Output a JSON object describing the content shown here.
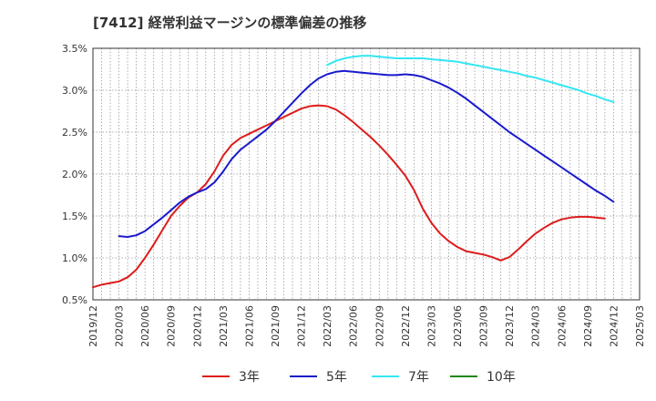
{
  "chart_data": {
    "type": "line",
    "title": "[7412]  経常利益マージンの標準偏差の推移",
    "xlabel": "",
    "ylabel": "",
    "ylim": [
      0.5,
      3.5
    ],
    "y_ticks": [
      "0.5%",
      "1.0%",
      "1.5%",
      "2.0%",
      "2.5%",
      "3.0%",
      "3.5%"
    ],
    "x_ticks": [
      "2019/12",
      "2020/03",
      "2020/06",
      "2020/09",
      "2020/12",
      "2021/03",
      "2021/06",
      "2021/09",
      "2021/12",
      "2022/03",
      "2022/06",
      "2022/09",
      "2022/12",
      "2023/03",
      "2023/06",
      "2023/09",
      "2023/12",
      "2024/03",
      "2024/06",
      "2024/09",
      "2024/12",
      "2025/03"
    ],
    "grid": true,
    "legend_position": "bottom",
    "series": [
      {
        "name": "3年",
        "color": "#dd1c1c",
        "points": [
          [
            "2019/12",
            0.65
          ],
          [
            "2020/01",
            0.68
          ],
          [
            "2020/02",
            0.7
          ],
          [
            "2020/03",
            0.72
          ],
          [
            "2020/04",
            0.77
          ],
          [
            "2020/05",
            0.86
          ],
          [
            "2020/06",
            1.0
          ],
          [
            "2020/07",
            1.16
          ],
          [
            "2020/08",
            1.33
          ],
          [
            "2020/09",
            1.5
          ],
          [
            "2020/10",
            1.62
          ],
          [
            "2020/11",
            1.72
          ],
          [
            "2020/12",
            1.78
          ],
          [
            "2021/01",
            1.88
          ],
          [
            "2021/02",
            2.03
          ],
          [
            "2021/03",
            2.22
          ],
          [
            "2021/04",
            2.35
          ],
          [
            "2021/05",
            2.43
          ],
          [
            "2021/06",
            2.48
          ],
          [
            "2021/07",
            2.53
          ],
          [
            "2021/08",
            2.58
          ],
          [
            "2021/09",
            2.63
          ],
          [
            "2021/10",
            2.68
          ],
          [
            "2021/11",
            2.73
          ],
          [
            "2021/12",
            2.78
          ],
          [
            "2022/01",
            2.81
          ],
          [
            "2022/02",
            2.82
          ],
          [
            "2022/03",
            2.81
          ],
          [
            "2022/04",
            2.77
          ],
          [
            "2022/05",
            2.7
          ],
          [
            "2022/06",
            2.62
          ],
          [
            "2022/07",
            2.53
          ],
          [
            "2022/08",
            2.44
          ],
          [
            "2022/09",
            2.34
          ],
          [
            "2022/10",
            2.23
          ],
          [
            "2022/11",
            2.11
          ],
          [
            "2022/12",
            1.98
          ],
          [
            "2023/01",
            1.81
          ],
          [
            "2023/02",
            1.59
          ],
          [
            "2023/03",
            1.42
          ],
          [
            "2023/04",
            1.29
          ],
          [
            "2023/05",
            1.2
          ],
          [
            "2023/06",
            1.13
          ],
          [
            "2023/07",
            1.08
          ],
          [
            "2023/08",
            1.06
          ],
          [
            "2023/09",
            1.04
          ],
          [
            "2023/10",
            1.01
          ],
          [
            "2023/11",
            0.97
          ],
          [
            "2023/12",
            1.01
          ],
          [
            "2024/01",
            1.1
          ],
          [
            "2024/02",
            1.2
          ],
          [
            "2024/03",
            1.29
          ],
          [
            "2024/04",
            1.36
          ],
          [
            "2024/05",
            1.42
          ],
          [
            "2024/06",
            1.46
          ],
          [
            "2024/07",
            1.48
          ],
          [
            "2024/08",
            1.49
          ],
          [
            "2024/09",
            1.49
          ],
          [
            "2024/10",
            1.48
          ],
          [
            "2024/11",
            1.47
          ]
        ]
      },
      {
        "name": "5年",
        "color": "#1a1acc",
        "points": [
          [
            "2020/03",
            1.26
          ],
          [
            "2020/04",
            1.25
          ],
          [
            "2020/05",
            1.27
          ],
          [
            "2020/06",
            1.32
          ],
          [
            "2020/07",
            1.4
          ],
          [
            "2020/08",
            1.48
          ],
          [
            "2020/09",
            1.57
          ],
          [
            "2020/10",
            1.66
          ],
          [
            "2020/11",
            1.73
          ],
          [
            "2020/12",
            1.78
          ],
          [
            "2021/01",
            1.82
          ],
          [
            "2021/02",
            1.9
          ],
          [
            "2021/03",
            2.03
          ],
          [
            "2021/04",
            2.18
          ],
          [
            "2021/05",
            2.29
          ],
          [
            "2021/06",
            2.37
          ],
          [
            "2021/07",
            2.45
          ],
          [
            "2021/08",
            2.53
          ],
          [
            "2021/09",
            2.63
          ],
          [
            "2021/10",
            2.74
          ],
          [
            "2021/11",
            2.85
          ],
          [
            "2021/12",
            2.96
          ],
          [
            "2022/01",
            3.06
          ],
          [
            "2022/02",
            3.14
          ],
          [
            "2022/03",
            3.19
          ],
          [
            "2022/04",
            3.22
          ],
          [
            "2022/05",
            3.23
          ],
          [
            "2022/06",
            3.22
          ],
          [
            "2022/07",
            3.21
          ],
          [
            "2022/08",
            3.2
          ],
          [
            "2022/09",
            3.19
          ],
          [
            "2022/10",
            3.18
          ],
          [
            "2022/11",
            3.18
          ],
          [
            "2022/12",
            3.19
          ],
          [
            "2023/01",
            3.18
          ],
          [
            "2023/02",
            3.16
          ],
          [
            "2023/03",
            3.12
          ],
          [
            "2023/04",
            3.08
          ],
          [
            "2023/05",
            3.03
          ],
          [
            "2023/06",
            2.97
          ],
          [
            "2023/07",
            2.9
          ],
          [
            "2023/08",
            2.82
          ],
          [
            "2023/09",
            2.74
          ],
          [
            "2023/10",
            2.66
          ],
          [
            "2023/11",
            2.58
          ],
          [
            "2023/12",
            2.5
          ],
          [
            "2024/01",
            2.43
          ],
          [
            "2024/02",
            2.36
          ],
          [
            "2024/03",
            2.29
          ],
          [
            "2024/04",
            2.22
          ],
          [
            "2024/05",
            2.15
          ],
          [
            "2024/06",
            2.08
          ],
          [
            "2024/07",
            2.01
          ],
          [
            "2024/08",
            1.94
          ],
          [
            "2024/09",
            1.87
          ],
          [
            "2024/10",
            1.8
          ],
          [
            "2024/11",
            1.74
          ],
          [
            "2024/12",
            1.67
          ]
        ]
      },
      {
        "name": "7年",
        "color": "#33e6f2",
        "points": [
          [
            "2022/03",
            3.3
          ],
          [
            "2022/04",
            3.35
          ],
          [
            "2022/05",
            3.38
          ],
          [
            "2022/06",
            3.4
          ],
          [
            "2022/07",
            3.41
          ],
          [
            "2022/08",
            3.41
          ],
          [
            "2022/09",
            3.4
          ],
          [
            "2022/10",
            3.39
          ],
          [
            "2022/11",
            3.38
          ],
          [
            "2022/12",
            3.38
          ],
          [
            "2023/01",
            3.38
          ],
          [
            "2023/02",
            3.38
          ],
          [
            "2023/03",
            3.37
          ],
          [
            "2023/04",
            3.36
          ],
          [
            "2023/05",
            3.35
          ],
          [
            "2023/06",
            3.34
          ],
          [
            "2023/07",
            3.32
          ],
          [
            "2023/08",
            3.3
          ],
          [
            "2023/09",
            3.28
          ],
          [
            "2023/10",
            3.26
          ],
          [
            "2023/11",
            3.24
          ],
          [
            "2023/12",
            3.22
          ],
          [
            "2024/01",
            3.2
          ],
          [
            "2024/02",
            3.17
          ],
          [
            "2024/03",
            3.15
          ],
          [
            "2024/04",
            3.12
          ],
          [
            "2024/05",
            3.09
          ],
          [
            "2024/06",
            3.06
          ],
          [
            "2024/07",
            3.03
          ],
          [
            "2024/08",
            3.0
          ],
          [
            "2024/09",
            2.96
          ],
          [
            "2024/10",
            2.93
          ],
          [
            "2024/11",
            2.89
          ],
          [
            "2024/12",
            2.86
          ]
        ]
      },
      {
        "name": "10年",
        "color": "#1a8a1a",
        "points": []
      }
    ]
  }
}
